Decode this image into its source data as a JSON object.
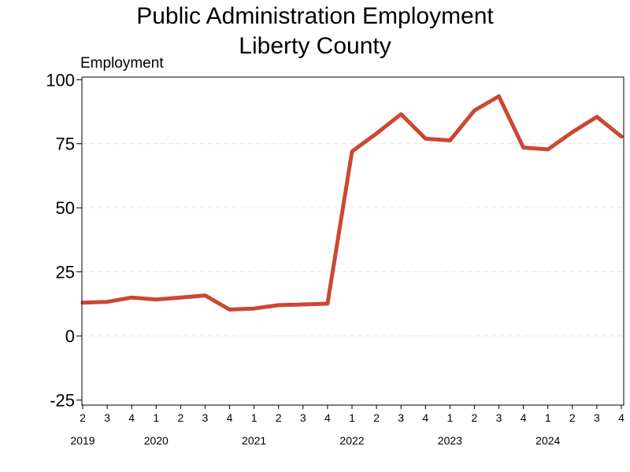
{
  "chart_data": {
    "type": "line",
    "title_line1": "Public Administration Employment",
    "title_line2": "Liberty County",
    "ylabel": "Employment",
    "xlabel": "",
    "ylim": [
      -27,
      101
    ],
    "yticks": [
      -25,
      0,
      25,
      50,
      75,
      100
    ],
    "grid": true,
    "categories": [
      "2",
      "3",
      "4",
      "1",
      "2",
      "3",
      "4",
      "1",
      "2",
      "3",
      "4",
      "1",
      "2",
      "3",
      "4",
      "1",
      "2",
      "3",
      "4",
      "1",
      "2",
      "3",
      "4"
    ],
    "years": [
      {
        "label": "2019",
        "index": 0
      },
      {
        "label": "2020",
        "index": 3
      },
      {
        "label": "2021",
        "index": 7
      },
      {
        "label": "2022",
        "index": 11
      },
      {
        "label": "2023",
        "index": 15
      },
      {
        "label": "2024",
        "index": 19
      }
    ],
    "series": [
      {
        "color": "#cc4733",
        "values": [
          13,
          13.3,
          15,
          14.2,
          15,
          15.8,
          10.3,
          10.7,
          12,
          12.3,
          12.6,
          72,
          79,
          86.5,
          77,
          76.3,
          88,
          93.5,
          73.5,
          72.8,
          79.5,
          85.5,
          77.8
        ]
      }
    ]
  }
}
